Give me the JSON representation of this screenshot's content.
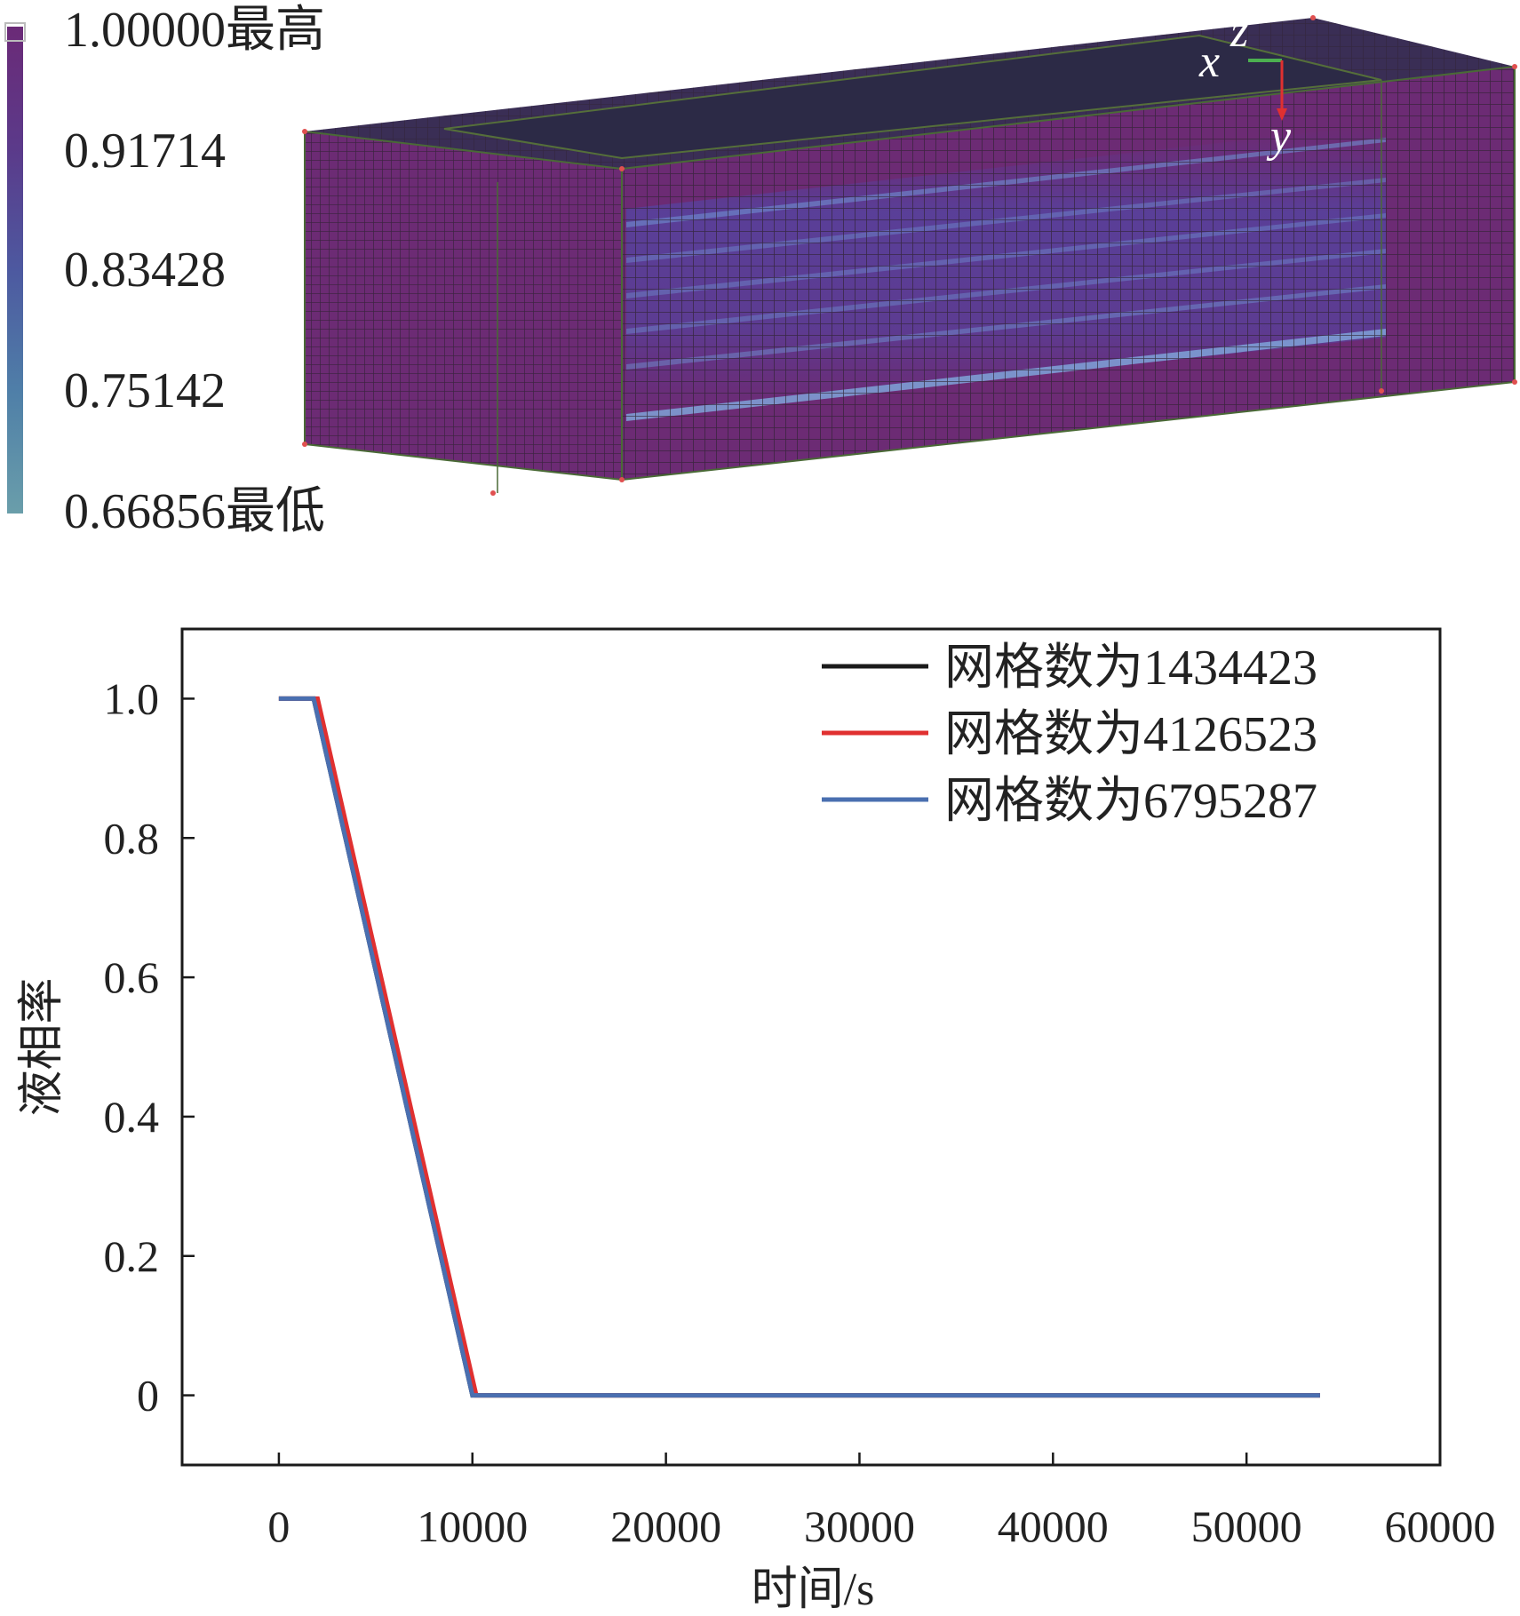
{
  "colorbar": {
    "labels": [
      "1.00000最高",
      "0.91714",
      "0.83428",
      "0.75142",
      "0.66856最低"
    ],
    "colors": [
      "#6b2a77",
      "#5b3a8a",
      "#4d59a0",
      "#4f7fa8",
      "#6a9eaa"
    ]
  },
  "model": {
    "axis_letters": {
      "x": "x",
      "y": "y",
      "z": "z"
    },
    "colors": {
      "box": "#6c2b74",
      "grid": "#2f2332",
      "top": "#2c2a46",
      "band": "#4a4fb5",
      "highlight": "#7fa3d8"
    }
  },
  "chart_data": {
    "type": "line",
    "xlabel": "时间/s",
    "ylabel": "液相率",
    "xlim": [
      -5000,
      60000
    ],
    "ylim": [
      -0.1,
      1.1
    ],
    "xticks": [
      0,
      10000,
      20000,
      30000,
      40000,
      50000,
      60000
    ],
    "xtick_labels": [
      "0",
      "10000",
      "20000",
      "30000",
      "40000",
      "50000",
      "60000"
    ],
    "yticks": [
      0,
      0.2,
      0.4,
      0.6,
      0.8,
      1.0
    ],
    "ytick_labels": [
      "0",
      "0.2",
      "0.4",
      "0.6",
      "0.8",
      "1.0"
    ],
    "legend_position": "top-right",
    "series": [
      {
        "name": "网格数为1434423",
        "color": "#1a1a1a",
        "x": [
          0,
          1800,
          10000,
          53800
        ],
        "y": [
          1,
          1,
          0,
          0
        ]
      },
      {
        "name": "网格数为4126523",
        "color": "#e03030",
        "x": [
          0,
          2000,
          10200,
          53800
        ],
        "y": [
          1,
          1,
          0,
          0
        ]
      },
      {
        "name": "网格数为6795287",
        "color": "#4a6fb0",
        "x": [
          0,
          1800,
          10000,
          53800
        ],
        "y": [
          1,
          1,
          0,
          0
        ]
      }
    ]
  }
}
